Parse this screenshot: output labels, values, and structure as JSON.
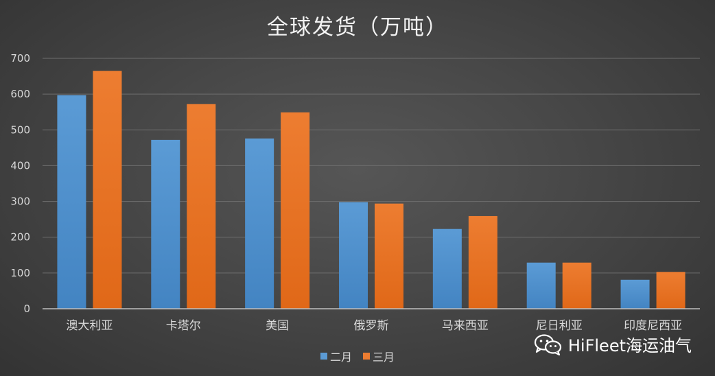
{
  "chart_data": {
    "type": "bar",
    "title": "全球发货（万吨）",
    "categories": [
      "澳大利亚",
      "卡塔尔",
      "美国",
      "俄罗斯",
      "马来西亚",
      "尼日利亚",
      "印度尼西亚"
    ],
    "series": [
      {
        "name": "二月",
        "color": "#5b9bd5",
        "values": [
          597,
          472,
          476,
          298,
          223,
          129,
          81
        ]
      },
      {
        "name": "三月",
        "color": "#ed7d31",
        "values": [
          665,
          572,
          549,
          294,
          259,
          129,
          103
        ]
      }
    ],
    "ylim": [
      0,
      700
    ],
    "yticks": [
      0,
      100,
      200,
      300,
      400,
      500,
      600,
      700
    ],
    "xlabel": "",
    "ylabel": "",
    "grid": true,
    "legend": "bottom"
  },
  "watermark": {
    "text": "HiFleet海运油气",
    "icon": "wechat-icon"
  }
}
